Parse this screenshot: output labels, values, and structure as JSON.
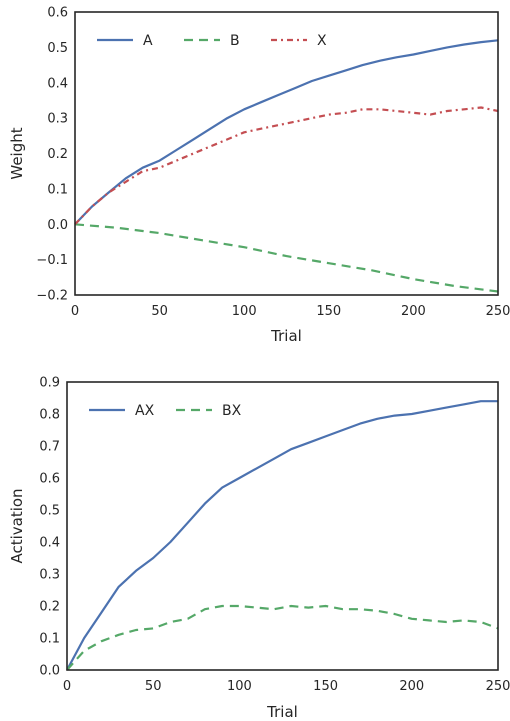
{
  "chart_data": [
    {
      "type": "line",
      "xlabel": "Trial",
      "ylabel": "Weight",
      "xlim": [
        0,
        250
      ],
      "ylim": [
        -0.2,
        0.6
      ],
      "xticks": [
        "0",
        "50",
        "100",
        "150",
        "200",
        "250"
      ],
      "yticks": [
        "−0.2",
        "−0.1",
        "0.0",
        "0.1",
        "0.2",
        "0.3",
        "0.4",
        "0.5",
        "0.6"
      ],
      "grid": false,
      "legend_position": "top-left",
      "series": [
        {
          "name": "A",
          "color": "#4c72b0",
          "style": "solid",
          "x": [
            0,
            10,
            20,
            30,
            40,
            50,
            60,
            70,
            80,
            90,
            100,
            110,
            120,
            130,
            140,
            150,
            160,
            170,
            180,
            190,
            200,
            210,
            220,
            230,
            240,
            250
          ],
          "y": [
            0.0,
            0.05,
            0.09,
            0.13,
            0.16,
            0.18,
            0.21,
            0.24,
            0.27,
            0.3,
            0.325,
            0.345,
            0.365,
            0.385,
            0.405,
            0.42,
            0.435,
            0.45,
            0.462,
            0.472,
            0.48,
            0.49,
            0.5,
            0.508,
            0.515,
            0.52
          ]
        },
        {
          "name": "B",
          "color": "#55a868",
          "style": "dashed",
          "x": [
            0,
            25,
            50,
            75,
            100,
            125,
            150,
            175,
            200,
            225,
            250
          ],
          "y": [
            0.0,
            -0.01,
            -0.025,
            -0.045,
            -0.065,
            -0.09,
            -0.11,
            -0.13,
            -0.155,
            -0.175,
            -0.19
          ]
        },
        {
          "name": "X",
          "color": "#c44e52",
          "style": "dashdot",
          "x": [
            0,
            10,
            20,
            30,
            40,
            50,
            60,
            70,
            80,
            90,
            100,
            110,
            120,
            130,
            140,
            150,
            160,
            170,
            180,
            190,
            200,
            210,
            220,
            230,
            240,
            250
          ],
          "y": [
            0.0,
            0.05,
            0.09,
            0.12,
            0.15,
            0.16,
            0.18,
            0.2,
            0.22,
            0.24,
            0.26,
            0.27,
            0.28,
            0.29,
            0.3,
            0.31,
            0.315,
            0.325,
            0.325,
            0.32,
            0.315,
            0.31,
            0.32,
            0.325,
            0.33,
            0.32
          ]
        }
      ]
    },
    {
      "type": "line",
      "xlabel": "Trial",
      "ylabel": "Activation",
      "xlim": [
        0,
        250
      ],
      "ylim": [
        0.0,
        0.9
      ],
      "xticks": [
        "0",
        "50",
        "100",
        "150",
        "200",
        "250"
      ],
      "yticks": [
        "0.0",
        "0.1",
        "0.2",
        "0.3",
        "0.4",
        "0.5",
        "0.6",
        "0.7",
        "0.8",
        "0.9"
      ],
      "grid": false,
      "legend_position": "top-left",
      "series": [
        {
          "name": "AX",
          "color": "#4c72b0",
          "style": "solid",
          "x": [
            0,
            10,
            20,
            30,
            40,
            50,
            60,
            70,
            80,
            90,
            100,
            110,
            120,
            130,
            140,
            150,
            160,
            170,
            180,
            190,
            200,
            210,
            220,
            230,
            240,
            250
          ],
          "y": [
            0.0,
            0.1,
            0.18,
            0.26,
            0.31,
            0.35,
            0.4,
            0.46,
            0.52,
            0.57,
            0.6,
            0.63,
            0.66,
            0.69,
            0.71,
            0.73,
            0.75,
            0.77,
            0.785,
            0.795,
            0.8,
            0.81,
            0.82,
            0.83,
            0.84,
            0.84
          ]
        },
        {
          "name": "BX",
          "color": "#55a868",
          "style": "dashed",
          "x": [
            0,
            10,
            20,
            30,
            40,
            50,
            60,
            70,
            80,
            90,
            100,
            110,
            120,
            130,
            140,
            150,
            160,
            170,
            180,
            190,
            200,
            210,
            220,
            230,
            240,
            250
          ],
          "y": [
            0.0,
            0.06,
            0.09,
            0.11,
            0.125,
            0.13,
            0.15,
            0.16,
            0.19,
            0.2,
            0.2,
            0.195,
            0.19,
            0.2,
            0.195,
            0.2,
            0.19,
            0.19,
            0.185,
            0.175,
            0.16,
            0.155,
            0.15,
            0.155,
            0.15,
            0.13
          ]
        }
      ]
    }
  ]
}
